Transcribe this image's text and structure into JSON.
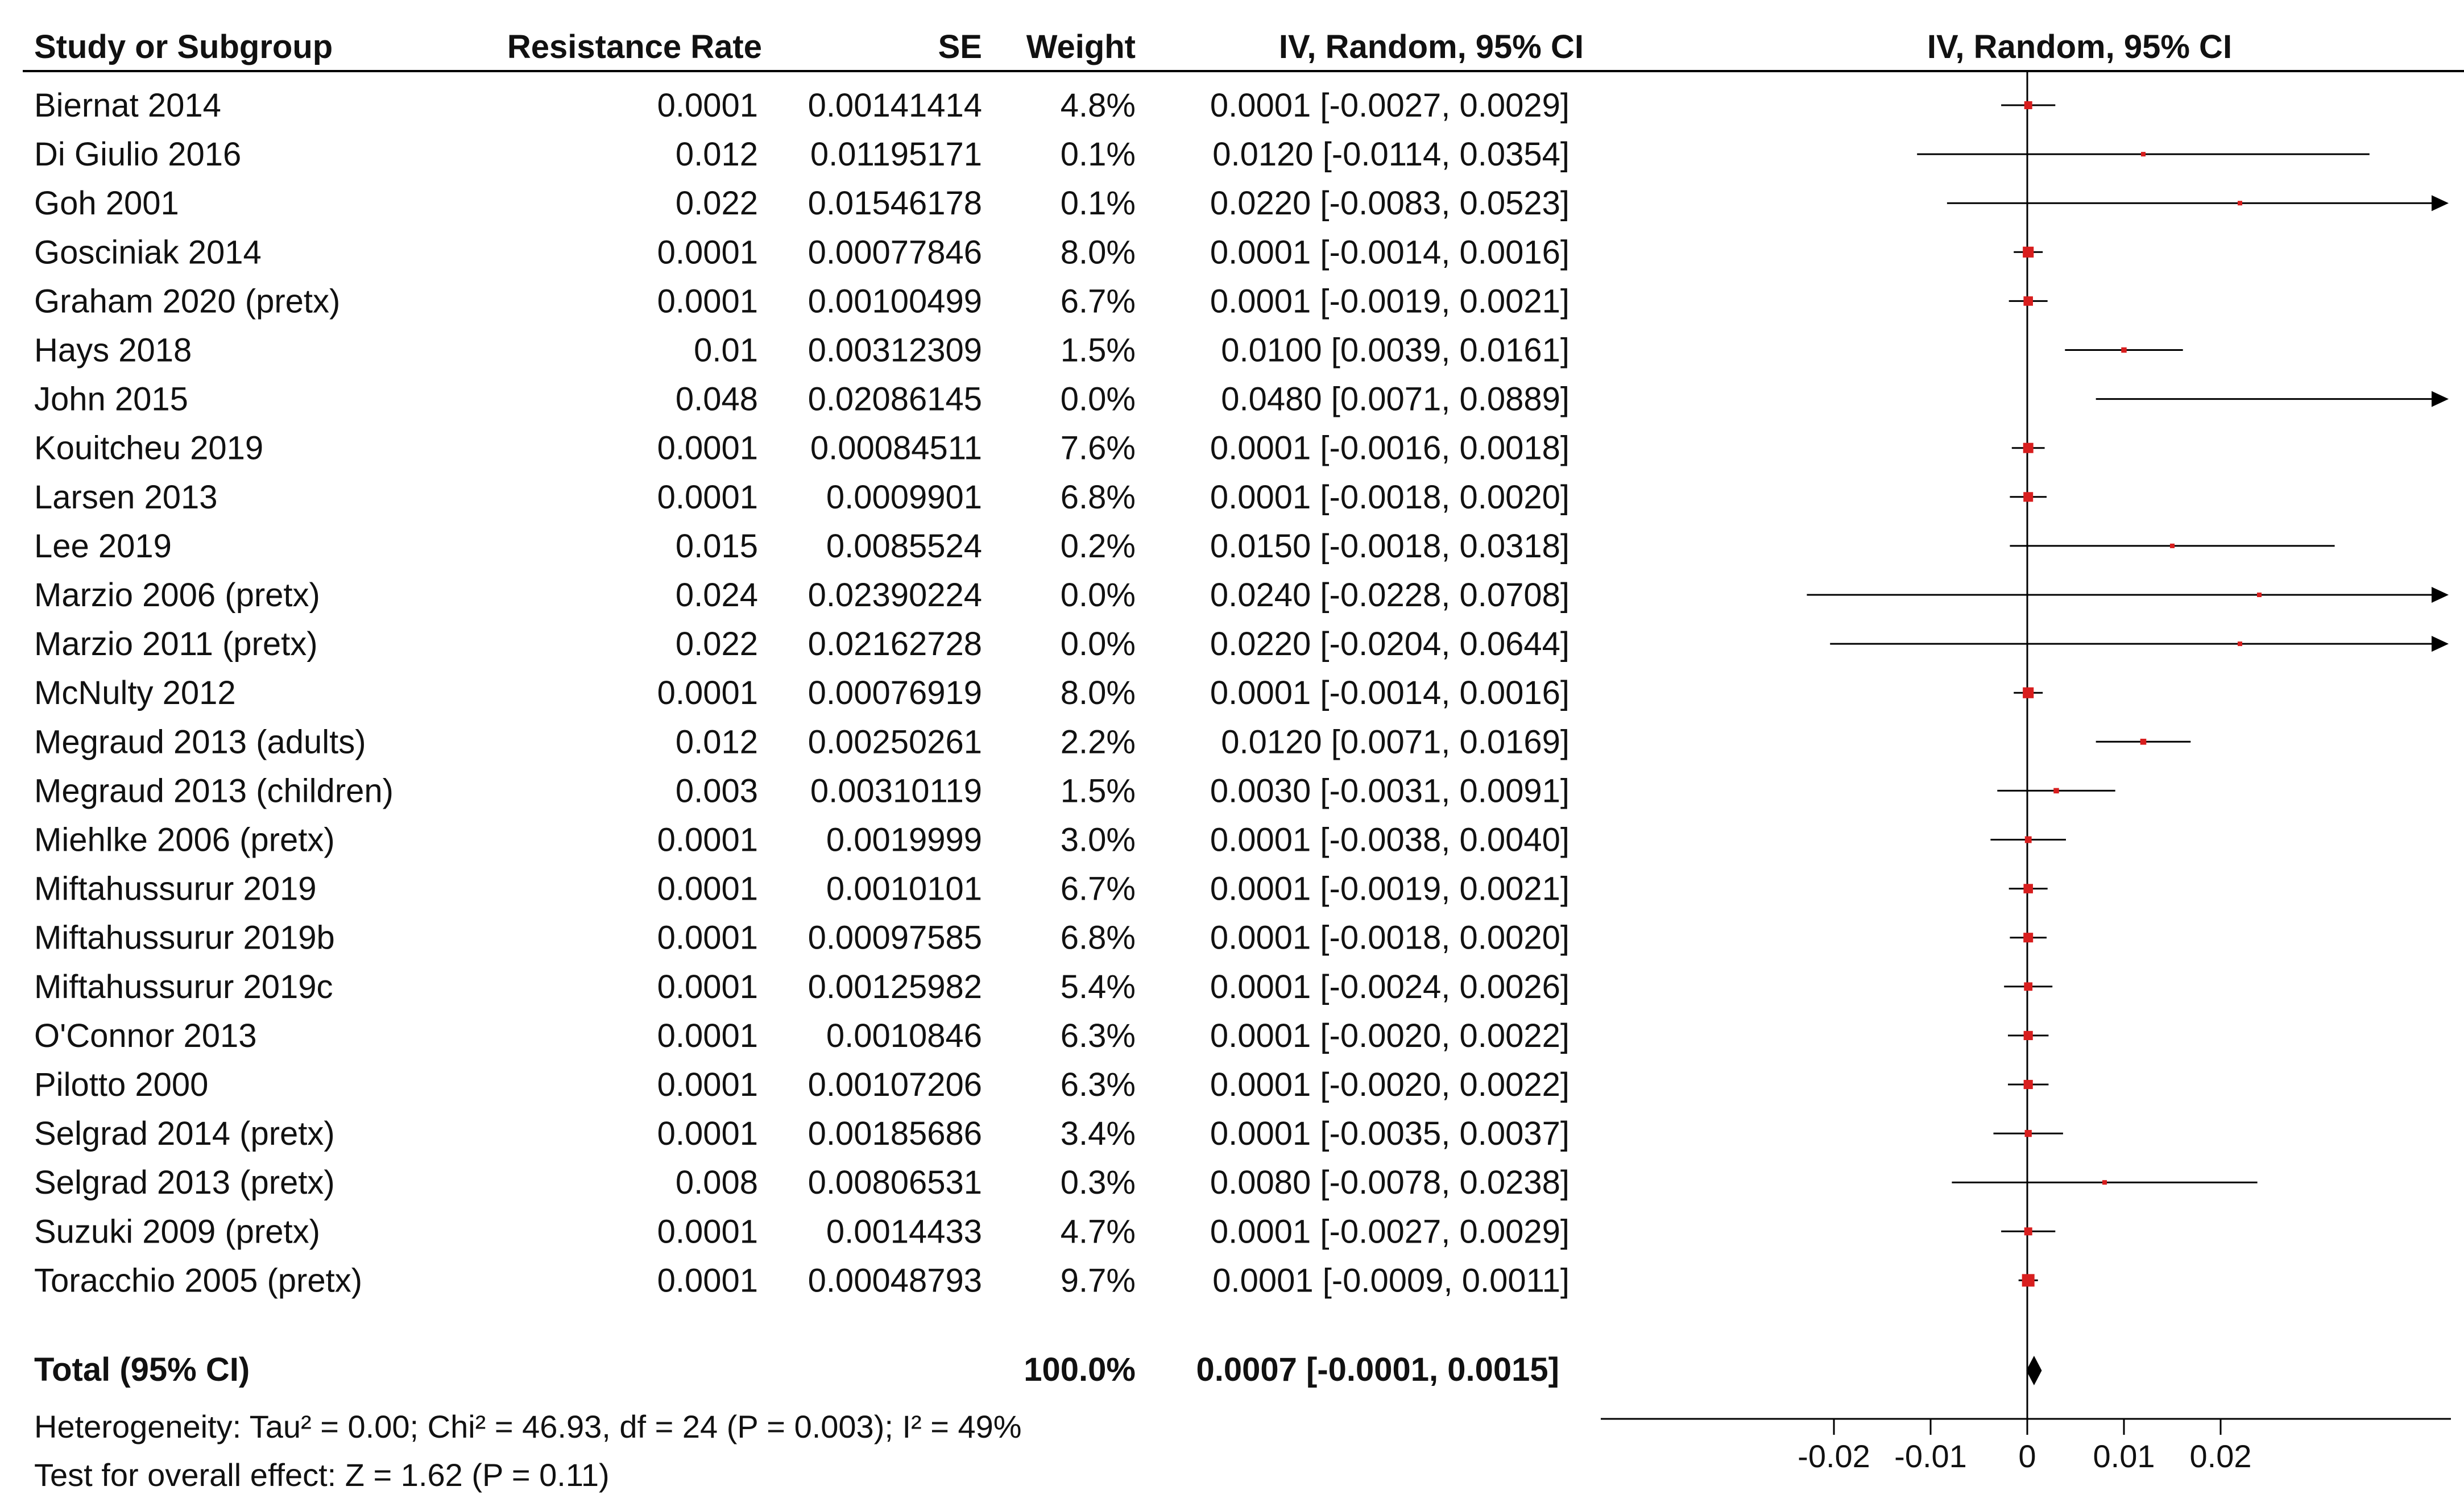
{
  "chart_data": {
    "type": "forest",
    "headers": {
      "study": "Study or Subgroup",
      "rate": "Resistance Rate",
      "se": "SE",
      "weight": "Weight",
      "ci": "IV, Random, 95% CI",
      "plot": "IV, Random, 95% CI"
    },
    "studies": [
      {
        "name": "Biernat 2014",
        "rate": "0.0001",
        "se": "0.00141414",
        "weight": "4.8%",
        "ci": "0.0001 [-0.0027, 0.0029]",
        "est": 0.0001,
        "lo": -0.0027,
        "hi": 0.0029
      },
      {
        "name": "Di Giulio 2016",
        "rate": "0.012",
        "se": "0.01195171",
        "weight": "0.1%",
        "ci": "0.0120 [-0.0114, 0.0354]",
        "est": 0.012,
        "lo": -0.0114,
        "hi": 0.0354
      },
      {
        "name": "Goh 2001",
        "rate": "0.022",
        "se": "0.01546178",
        "weight": "0.1%",
        "ci": "0.0220 [-0.0083, 0.0523]",
        "est": 0.022,
        "lo": -0.0083,
        "hi": 0.0523
      },
      {
        "name": "Gosciniak 2014",
        "rate": "0.0001",
        "se": "0.00077846",
        "weight": "8.0%",
        "ci": "0.0001 [-0.0014, 0.0016]",
        "est": 0.0001,
        "lo": -0.0014,
        "hi": 0.0016
      },
      {
        "name": "Graham 2020 (pretx)",
        "rate": "0.0001",
        "se": "0.00100499",
        "weight": "6.7%",
        "ci": "0.0001 [-0.0019, 0.0021]",
        "est": 0.0001,
        "lo": -0.0019,
        "hi": 0.0021
      },
      {
        "name": "Hays 2018",
        "rate": "0.01",
        "se": "0.00312309",
        "weight": "1.5%",
        "ci": "0.0100 [0.0039, 0.0161]",
        "est": 0.01,
        "lo": 0.0039,
        "hi": 0.0161
      },
      {
        "name": "John 2015",
        "rate": "0.048",
        "se": "0.02086145",
        "weight": "0.0%",
        "ci": "0.0480 [0.0071, 0.0889]",
        "est": 0.048,
        "lo": 0.0071,
        "hi": 0.0889
      },
      {
        "name": "Kouitcheu 2019",
        "rate": "0.0001",
        "se": "0.00084511",
        "weight": "7.6%",
        "ci": "0.0001 [-0.0016, 0.0018]",
        "est": 0.0001,
        "lo": -0.0016,
        "hi": 0.0018
      },
      {
        "name": "Larsen 2013",
        "rate": "0.0001",
        "se": "0.0009901",
        "weight": "6.8%",
        "ci": "0.0001 [-0.0018, 0.0020]",
        "est": 0.0001,
        "lo": -0.0018,
        "hi": 0.002
      },
      {
        "name": "Lee 2019",
        "rate": "0.015",
        "se": "0.0085524",
        "weight": "0.2%",
        "ci": "0.0150 [-0.0018, 0.0318]",
        "est": 0.015,
        "lo": -0.0018,
        "hi": 0.0318
      },
      {
        "name": "Marzio 2006 (pretx)",
        "rate": "0.024",
        "se": "0.02390224",
        "weight": "0.0%",
        "ci": "0.0240 [-0.0228, 0.0708]",
        "est": 0.024,
        "lo": -0.0228,
        "hi": 0.0708
      },
      {
        "name": "Marzio 2011 (pretx)",
        "rate": "0.022",
        "se": "0.02162728",
        "weight": "0.0%",
        "ci": "0.0220 [-0.0204, 0.0644]",
        "est": 0.022,
        "lo": -0.0204,
        "hi": 0.0644
      },
      {
        "name": "McNulty 2012",
        "rate": "0.0001",
        "se": "0.00076919",
        "weight": "8.0%",
        "ci": "0.0001 [-0.0014, 0.0016]",
        "est": 0.0001,
        "lo": -0.0014,
        "hi": 0.0016
      },
      {
        "name": "Megraud 2013 (adults)",
        "rate": "0.012",
        "se": "0.00250261",
        "weight": "2.2%",
        "ci": "0.0120 [0.0071, 0.0169]",
        "est": 0.012,
        "lo": 0.0071,
        "hi": 0.0169
      },
      {
        "name": "Megraud 2013 (children)",
        "rate": "0.003",
        "se": "0.00310119",
        "weight": "1.5%",
        "ci": "0.0030 [-0.0031, 0.0091]",
        "est": 0.003,
        "lo": -0.0031,
        "hi": 0.0091
      },
      {
        "name": "Miehlke 2006 (pretx)",
        "rate": "0.0001",
        "se": "0.0019999",
        "weight": "3.0%",
        "ci": "0.0001 [-0.0038, 0.0040]",
        "est": 0.0001,
        "lo": -0.0038,
        "hi": 0.004
      },
      {
        "name": "Miftahussurur 2019",
        "rate": "0.0001",
        "se": "0.0010101",
        "weight": "6.7%",
        "ci": "0.0001 [-0.0019, 0.0021]",
        "est": 0.0001,
        "lo": -0.0019,
        "hi": 0.0021
      },
      {
        "name": "Miftahussurur 2019b",
        "rate": "0.0001",
        "se": "0.00097585",
        "weight": "6.8%",
        "ci": "0.0001 [-0.0018, 0.0020]",
        "est": 0.0001,
        "lo": -0.0018,
        "hi": 0.002
      },
      {
        "name": "Miftahussurur 2019c",
        "rate": "0.0001",
        "se": "0.00125982",
        "weight": "5.4%",
        "ci": "0.0001 [-0.0024, 0.0026]",
        "est": 0.0001,
        "lo": -0.0024,
        "hi": 0.0026
      },
      {
        "name": "O'Connor 2013",
        "rate": "0.0001",
        "se": "0.0010846",
        "weight": "6.3%",
        "ci": "0.0001 [-0.0020, 0.0022]",
        "est": 0.0001,
        "lo": -0.002,
        "hi": 0.0022
      },
      {
        "name": "Pilotto 2000",
        "rate": "0.0001",
        "se": "0.00107206",
        "weight": "6.3%",
        "ci": "0.0001 [-0.0020, 0.0022]",
        "est": 0.0001,
        "lo": -0.002,
        "hi": 0.0022
      },
      {
        "name": "Selgrad  2014 (pretx)",
        "rate": "0.0001",
        "se": "0.00185686",
        "weight": "3.4%",
        "ci": "0.0001 [-0.0035, 0.0037]",
        "est": 0.0001,
        "lo": -0.0035,
        "hi": 0.0037
      },
      {
        "name": "Selgrad 2013 (pretx)",
        "rate": "0.008",
        "se": "0.00806531",
        "weight": "0.3%",
        "ci": "0.0080 [-0.0078, 0.0238]",
        "est": 0.008,
        "lo": -0.0078,
        "hi": 0.0238
      },
      {
        "name": "Suzuki 2009 (pretx)",
        "rate": "0.0001",
        "se": "0.0014433",
        "weight": "4.7%",
        "ci": "0.0001 [-0.0027, 0.0029]",
        "est": 0.0001,
        "lo": -0.0027,
        "hi": 0.0029
      },
      {
        "name": "Toracchio 2005 (pretx)",
        "rate": "0.0001",
        "se": "0.00048793",
        "weight": "9.7%",
        "ci": "0.0001 [-0.0009, 0.0011]",
        "est": 0.0001,
        "lo": -0.0009,
        "hi": 0.0011
      }
    ],
    "total": {
      "label": "Total (95% CI)",
      "weight": "100.0%",
      "ci": "0.0007 [-0.0001, 0.0015]",
      "est": 0.0007,
      "lo": -0.0001,
      "hi": 0.0015
    },
    "heterogeneity": "Heterogeneity: Tau² = 0.00; Chi² = 46.93, df = 24 (P = 0.003); I² = 49%",
    "overall_effect": "Test for overall effect: Z = 1.62 (P = 0.11)",
    "x_axis": {
      "ticks": [
        -0.02,
        -0.01,
        0,
        0.01,
        0.02
      ],
      "tick_labels": [
        "-0.02",
        "-0.01",
        "0",
        "0.01",
        "0.02"
      ],
      "xlim": [
        -0.044,
        0.0435
      ]
    },
    "colors": {
      "marker": "#d81e1e",
      "line": "#000000",
      "diamond": "#000000"
    }
  }
}
